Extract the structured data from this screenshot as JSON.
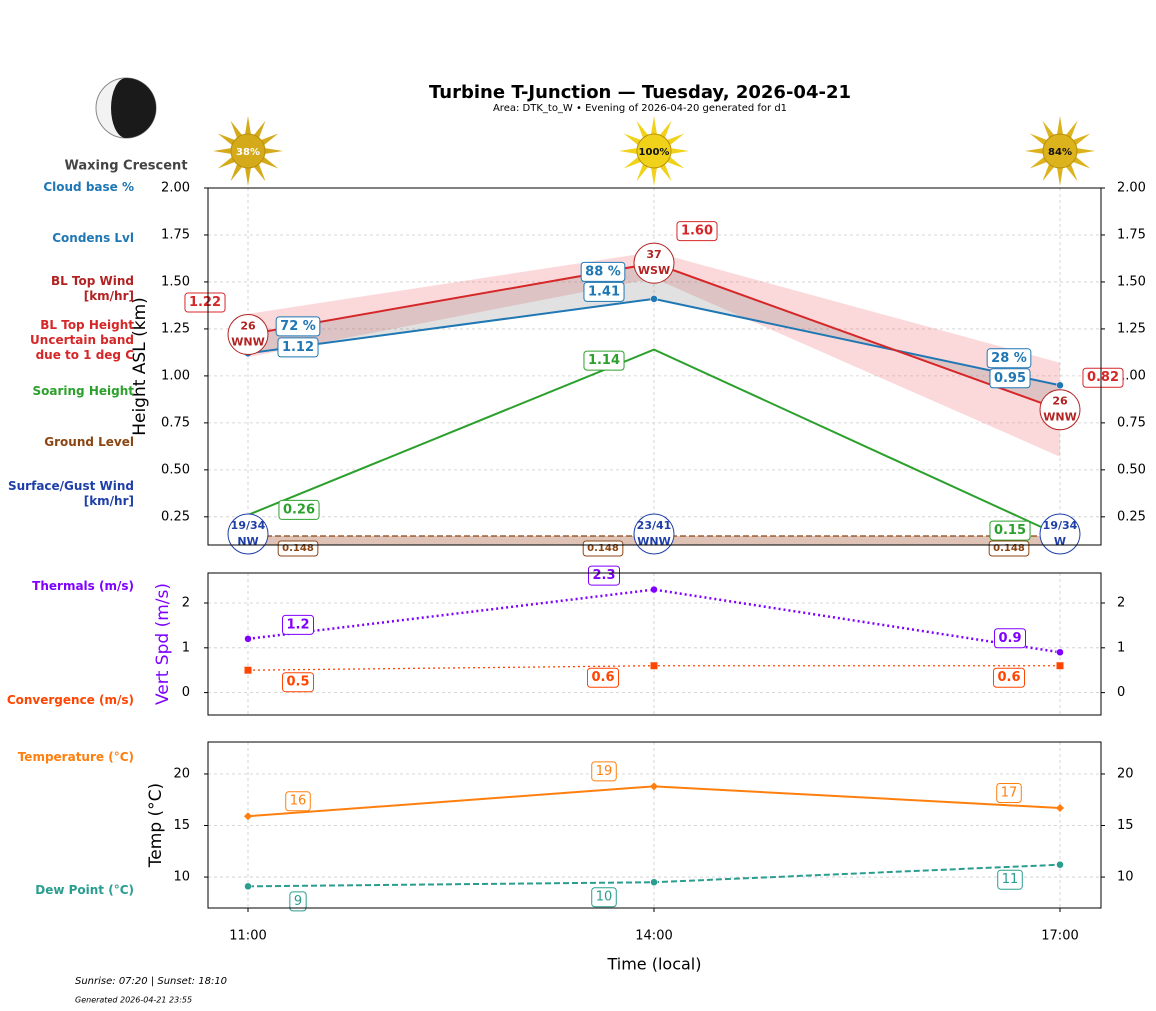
{
  "header": {
    "title": "Turbine T-Junction — Tuesday, 2026-04-21",
    "subtitle": "Area: DTK_to_W • Evening of 2026-04-20 generated for d1"
  },
  "moon": {
    "phase": "Waxing Crescent"
  },
  "sunshine": {
    "values": [
      38,
      100,
      84
    ],
    "value_labels": [
      "38%",
      "100%",
      "84%"
    ],
    "colors": [
      "#d4aa1a",
      "#f0d21a",
      "#dcb31c"
    ]
  },
  "chart_data": [
    {
      "type": "line",
      "ylabel": "Height ASL (km)",
      "ylim": [
        0.1,
        2.0
      ],
      "yticks": [
        0.25,
        {
          "value": 0.5,
          "label": "0.50"
        },
        0.75,
        {
          "value": 1,
          "label": "1.00"
        },
        1.25,
        {
          "value": 1.5,
          "label": "1.50"
        },
        1.75,
        {
          "value": 2,
          "label": "2.00"
        }
      ],
      "grid": true,
      "series": [
        {
          "name": "Cloud base %",
          "color": "#1f77b4",
          "linestyle": "none",
          "marker": "none",
          "values": [
            72,
            88,
            28
          ],
          "value_labels": [
            "72 %",
            "88 %",
            "28 %"
          ]
        },
        {
          "name": "Condens Lvl",
          "color": "#1f77b4",
          "linestyle": "solid",
          "marker": "circle",
          "values": [
            1.12,
            1.41,
            0.95
          ]
        },
        {
          "name": "BL Top Wind\n[km/hr]",
          "color": "#b22222",
          "linestyle": "none",
          "marker": "none",
          "values": [
            26,
            37,
            26
          ],
          "directions": [
            "WNW",
            "WSW",
            "WNW"
          ]
        },
        {
          "name": "BL Top Height\nUncertain band\ndue to 1 deg C",
          "color": "#d62728",
          "linestyle": "solid",
          "marker": "none",
          "values": [
            1.22,
            1.6,
            0.82
          ],
          "value_labels": [
            "1.22",
            "1.60",
            "0.82"
          ],
          "band_low": [
            1.1,
            1.52,
            0.57
          ],
          "band_high": [
            1.33,
            1.66,
            1.07
          ]
        },
        {
          "name": "Soaring Height",
          "color": "#2ca02c",
          "linestyle": "solid",
          "marker": "none",
          "values": [
            0.26,
            1.14,
            0.15
          ]
        },
        {
          "name": "Ground Level",
          "color": "#8b4513",
          "linestyle": "dashed",
          "marker": "none",
          "values": [
            0.148,
            0.148,
            0.148
          ]
        },
        {
          "name": "Surface/Gust Wind\n[km/hr]",
          "color": "#1f3fa8",
          "linestyle": "none",
          "marker": "none",
          "values": [
            19,
            23,
            19
          ],
          "gust": [
            34,
            41,
            34
          ],
          "value_labels": [
            "19/34",
            "23/41",
            "19/34"
          ],
          "directions": [
            "NW",
            "WNW",
            "W"
          ]
        }
      ]
    },
    {
      "type": "line",
      "ylabel": "Vert Spd (m/s)",
      "ylabel_color": "#7f00ff",
      "ylim": [
        -0.5,
        2.67
      ],
      "yticks": [
        0,
        1,
        2
      ],
      "grid": true,
      "series": [
        {
          "name": "Thermals (m/s)",
          "color": "#7f00ff",
          "linestyle": "dotted",
          "marker": "circle",
          "values": [
            1.2,
            2.3,
            0.9
          ]
        },
        {
          "name": "Convergence (m/s)",
          "color": "#ff4500",
          "linestyle": "dotted",
          "marker": "square",
          "values": [
            0.5,
            0.6,
            0.6
          ]
        }
      ]
    },
    {
      "type": "line",
      "ylabel": "Temp (°C)",
      "xlabel": "Time (local)",
      "categories": [
        "11:00",
        "14:00",
        "17:00"
      ],
      "ylim": [
        7,
        23.1
      ],
      "yticks": [
        10,
        15,
        20
      ],
      "grid": true,
      "series": [
        {
          "name": "Temperature (°C)",
          "color": "#ff7f0e",
          "linestyle": "solid",
          "marker": "diamond",
          "values": [
            15.9,
            18.8,
            16.7
          ],
          "value_labels": [
            "16",
            "19",
            "17"
          ]
        },
        {
          "name": "Dew Point (°C)",
          "color": "#2a9d8f",
          "linestyle": "dashed",
          "marker": "circle",
          "values": [
            9.1,
            9.5,
            11.2
          ],
          "value_labels": [
            "9",
            "10",
            "11"
          ]
        }
      ]
    }
  ],
  "footer": {
    "sun_times": "Sunrise: 07:20 | Sunset: 18:10",
    "generated": "Generated 2026-04-21 23:55"
  }
}
